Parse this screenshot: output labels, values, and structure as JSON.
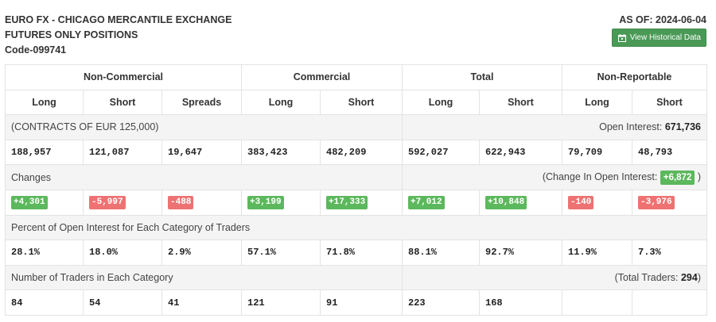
{
  "header": {
    "title_line1": "EURO FX - CHICAGO MERCANTILE EXCHANGE",
    "title_line2": "FUTURES ONLY POSITIONS",
    "code": "Code-099741",
    "as_of": "AS OF: 2024-06-04",
    "history_button": "View Historical Data",
    "history_icon": "calendar-icon"
  },
  "columns": {
    "groups": [
      "Non-Commercial",
      "Commercial",
      "Total",
      "Non-Reportable"
    ],
    "subs": [
      "Long",
      "Short",
      "Spreads",
      "Long",
      "Short",
      "Long",
      "Short",
      "Long",
      "Short"
    ]
  },
  "contracts": {
    "label": "(CONTRACTS OF EUR 125,000)",
    "open_interest_label": "Open Interest: ",
    "open_interest_value": "671,736",
    "values": [
      "188,957",
      "121,087",
      "19,647",
      "383,423",
      "482,209",
      "592,027",
      "622,943",
      "79,709",
      "48,793"
    ]
  },
  "changes": {
    "label": "Changes",
    "oi_change_prefix": "(Change In Open Interest: ",
    "oi_change_value": "+6,872",
    "oi_change_suffix": " )",
    "values": [
      {
        "text": "+4,301",
        "sign": "pos"
      },
      {
        "text": "-5,997",
        "sign": "neg"
      },
      {
        "text": "-488",
        "sign": "neg"
      },
      {
        "text": "+3,199",
        "sign": "pos"
      },
      {
        "text": "+17,333",
        "sign": "pos"
      },
      {
        "text": "+7,012",
        "sign": "pos"
      },
      {
        "text": "+10,848",
        "sign": "pos"
      },
      {
        "text": "-140",
        "sign": "neg"
      },
      {
        "text": "-3,976",
        "sign": "neg"
      }
    ],
    "colors": {
      "positive": "#5cb85c",
      "negative": "#ee7272"
    }
  },
  "percent": {
    "label": "Percent of Open Interest for Each Category of Traders",
    "values": [
      "28.1%",
      "18.0%",
      "2.9%",
      "57.1%",
      "71.8%",
      "88.1%",
      "92.7%",
      "11.9%",
      "7.3%"
    ]
  },
  "traders": {
    "label": "Number of Traders in Each Category",
    "total_label": "(Total Traders: ",
    "total_value": "294",
    "total_suffix": ")",
    "values": [
      "84",
      "54",
      "41",
      "121",
      "91",
      "223",
      "168",
      "",
      ""
    ]
  }
}
